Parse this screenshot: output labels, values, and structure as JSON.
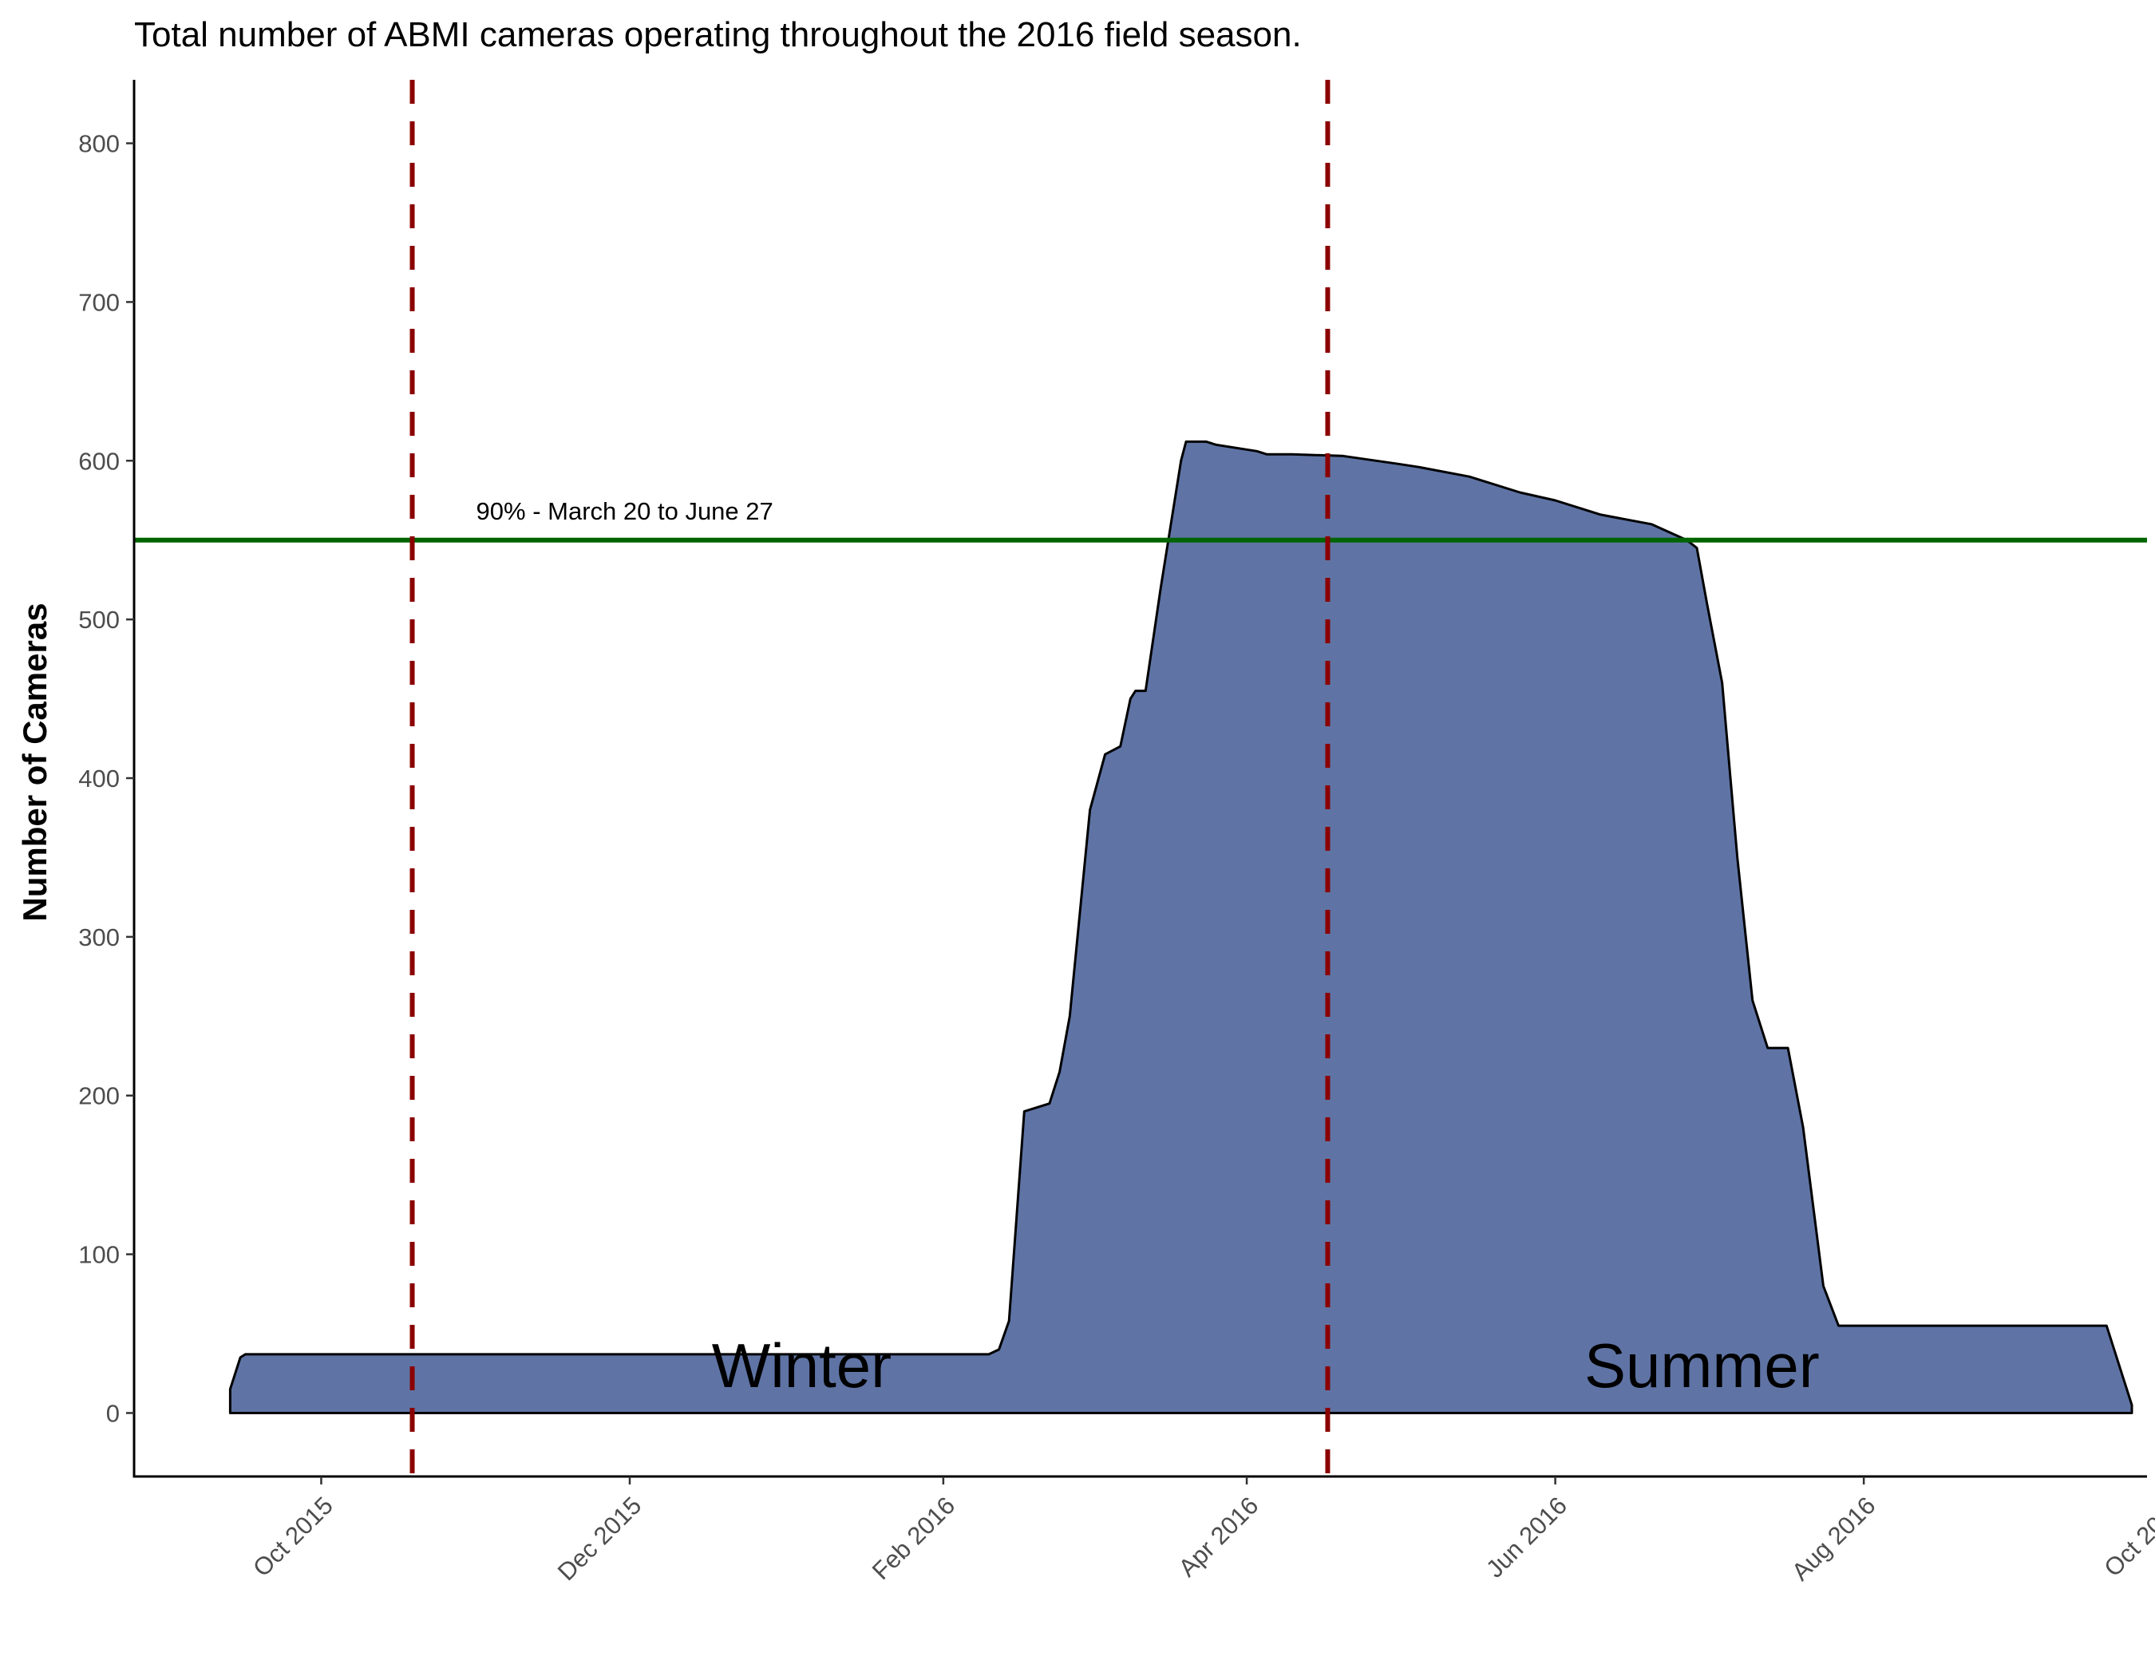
{
  "chart_data": {
    "type": "area",
    "title": "Total number of ABMI cameras operating throughout the 2016 field season.",
    "xlabel": "",
    "ylabel": "Number of Cameras",
    "xlim": [
      "2015-08-25",
      "2016-09-26"
    ],
    "ylim": [
      -40,
      840
    ],
    "x_ticks": [
      {
        "date": "2015-10-01",
        "label": "Oct 2015"
      },
      {
        "date": "2015-12-01",
        "label": "Dec 2015"
      },
      {
        "date": "2016-02-01",
        "label": "Feb 2016"
      },
      {
        "date": "2016-04-01",
        "label": "Apr 2016"
      },
      {
        "date": "2016-06-01",
        "label": "Jun 2016"
      },
      {
        "date": "2016-08-01",
        "label": "Aug 2016"
      },
      {
        "date": "2016-10-01",
        "label": "Oct 2016"
      }
    ],
    "y_ticks": [
      0,
      100,
      200,
      300,
      400,
      500,
      600,
      700,
      800
    ],
    "fill_color": "#5f74a5",
    "outline_color": "#000000",
    "grid": false,
    "series": [
      {
        "x": [
          "2015-09-13",
          "2015-09-15",
          "2015-09-16",
          "2015-10-15",
          "2016-01-01",
          "2016-02-10",
          "2016-02-12",
          "2016-02-14",
          "2016-02-17",
          "2016-02-22",
          "2016-02-24",
          "2016-02-26",
          "2016-03-01",
          "2016-03-04",
          "2016-03-07",
          "2016-03-09",
          "2016-03-10",
          "2016-03-12",
          "2016-03-15",
          "2016-03-17",
          "2016-03-19",
          "2016-03-20",
          "2016-03-24",
          "2016-03-26",
          "2016-04-03",
          "2016-04-05",
          "2016-04-10",
          "2016-04-20",
          "2016-05-01",
          "2016-05-05",
          "2016-05-15",
          "2016-05-25",
          "2016-06-01",
          "2016-06-10",
          "2016-06-20",
          "2016-06-27",
          "2016-06-29",
          "2016-07-01",
          "2016-07-04",
          "2016-07-07",
          "2016-07-10",
          "2016-07-13",
          "2016-07-17",
          "2016-07-20",
          "2016-07-24",
          "2016-07-27",
          "2016-08-01",
          "2016-08-20",
          "2016-09-18",
          "2016-09-21",
          "2016-09-23"
        ],
        "y": [
          15,
          35,
          37,
          37,
          37,
          37,
          40,
          58,
          190,
          195,
          215,
          250,
          380,
          415,
          420,
          450,
          455,
          455,
          520,
          560,
          600,
          612,
          612,
          610,
          606,
          604,
          604,
          603,
          598,
          596,
          590,
          580,
          575,
          566,
          560,
          550,
          545,
          510,
          460,
          350,
          260,
          230,
          230,
          180,
          80,
          55,
          55,
          55,
          55,
          25,
          5
        ]
      }
    ],
    "reference_lines": {
      "vertical": [
        "2015-10-19",
        "2016-04-17"
      ],
      "vertical_color": "#8b0000",
      "horizontal": 550,
      "horizontal_color": "#006400"
    },
    "annotations": [
      {
        "text": "90% - March 20 to June 27",
        "x": "2015-11-30",
        "y": 568
      },
      {
        "text": "Winter",
        "x": "2016-01-04",
        "y": 30
      },
      {
        "text": "Summer",
        "x": "2016-06-30",
        "y": 30
      }
    ]
  }
}
